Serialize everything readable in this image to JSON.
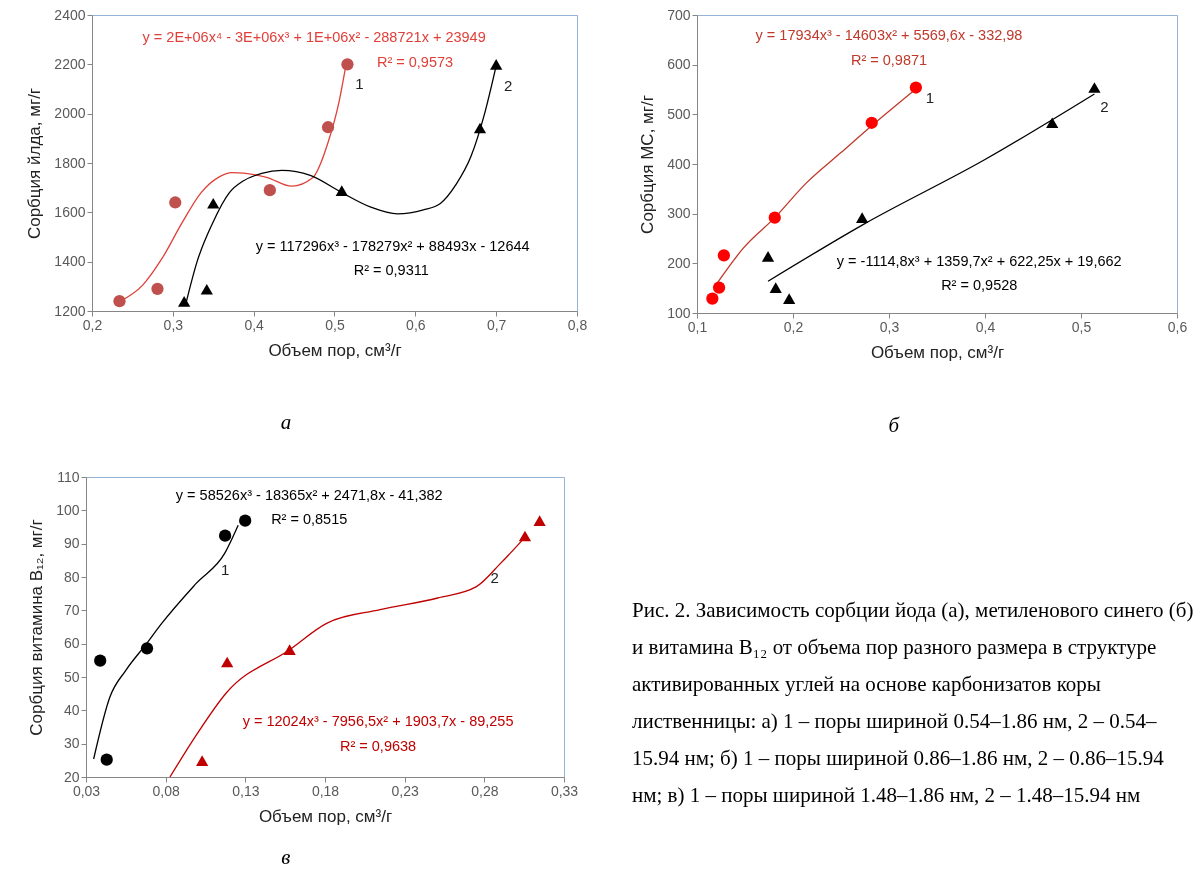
{
  "chart_data": [
    {
      "type": "scatter",
      "xlabel": "Объем пор, см³/г",
      "ylabel": "Сорбция йлда, мг/г",
      "xlim": [
        0.2,
        0.8
      ],
      "ylim": [
        1200,
        2400
      ],
      "xticks": [
        {
          "value": 0.2,
          "label": "0,2"
        },
        {
          "value": 0.3,
          "label": "0,3"
        },
        {
          "value": 0.4,
          "label": "0,4"
        },
        {
          "value": 0.5,
          "label": "0,5"
        },
        {
          "value": 0.6,
          "label": "0,6"
        },
        {
          "value": 0.7,
          "label": "0,7"
        },
        {
          "value": 0.8,
          "label": "0,8"
        }
      ],
      "yticks": [
        1200,
        1400,
        1600,
        1800,
        2000,
        2200,
        2400
      ],
      "series": [
        {
          "name": "1",
          "type": "scatter",
          "marker": "circle",
          "color": "#c0504d",
          "x": [
            0.234,
            0.281,
            0.303,
            0.42,
            0.492,
            0.516
          ],
          "values": [
            1240,
            1290,
            1640,
            1690,
            1945,
            2200
          ]
        },
        {
          "type": "line",
          "color": "#e0403a",
          "x": [
            0.233,
            0.263,
            0.287,
            0.311,
            0.335,
            0.358,
            0.373,
            0.416,
            0.447,
            0.473,
            0.492,
            0.506,
            0.514
          ],
          "values": [
            1236,
            1306,
            1415,
            1555,
            1680,
            1745,
            1761,
            1742,
            1706,
            1740,
            1883,
            2054,
            2194
          ]
        },
        {
          "name": "2",
          "type": "scatter",
          "marker": "triangle",
          "color": "#000000",
          "x": [
            0.314,
            0.342,
            0.35,
            0.509,
            0.68,
            0.7
          ],
          "values": [
            1239,
            1288,
            1637,
            1688,
            1942,
            2200
          ]
        },
        {
          "type": "line",
          "color": "#000000",
          "x": [
            0.316,
            0.33,
            0.349,
            0.37,
            0.387,
            0.41,
            0.435,
            0.47,
            0.509,
            0.545,
            0.578,
            0.61,
            0.631,
            0.65,
            0.669,
            0.685,
            0.7
          ],
          "values": [
            1228,
            1400,
            1555,
            1680,
            1727,
            1758,
            1770,
            1750,
            1680,
            1621,
            1594,
            1610,
            1636,
            1711,
            1828,
            1992,
            2194
          ]
        }
      ],
      "annotations": [
        "y = 2E+06x⁴ - 3E+06x³ + 1E+06x² - 288721x + 23949",
        "R² = 0,9573",
        "y = 117296x³ - 178279x² + 88493x - 12644",
        "R² = 0,9311",
        "а"
      ]
    },
    {
      "type": "scatter",
      "xlabel": "Объем пор, см³/г",
      "ylabel": "Сорбция МС, мг/г",
      "xlim": [
        0.1,
        0.6
      ],
      "ylim": [
        100,
        700
      ],
      "xticks": [
        {
          "value": 0.1,
          "label": "0,1"
        },
        {
          "value": 0.2,
          "label": "0,2"
        },
        {
          "value": 0.3,
          "label": "0,3"
        },
        {
          "value": 0.4,
          "label": "0,4"
        },
        {
          "value": 0.5,
          "label": "0,5"
        },
        {
          "value": 0.6,
          "label": "0,6"
        }
      ],
      "yticks": [
        100,
        200,
        300,
        400,
        500,
        600,
        700
      ],
      "series": [
        {
          "name": "1",
          "type": "scatter",
          "marker": "circle",
          "color": "#ff0000",
          "x": [
            0.116,
            0.123,
            0.128,
            0.181,
            0.282,
            0.328
          ],
          "values": [
            129,
            151,
            216,
            292,
            483,
            554
          ]
        },
        {
          "type": "line",
          "color": "#c0392b",
          "x": [
            0.121,
            0.148,
            0.181,
            0.214,
            0.25,
            0.282,
            0.328
          ],
          "values": [
            160,
            230,
            292,
            362,
            423,
            477,
            551
          ]
        },
        {
          "name": "2",
          "type": "scatter",
          "marker": "triangle",
          "color": "#000000",
          "x": [
            0.174,
            0.182,
            0.196,
            0.272,
            0.47,
            0.514
          ],
          "values": [
            214,
            151,
            129,
            292,
            483,
            554
          ]
        },
        {
          "type": "line",
          "color": "#000000",
          "x": [
            0.174,
            0.273,
            0.4,
            0.514
          ],
          "values": [
            164,
            278,
            409,
            541
          ]
        }
      ],
      "annotations": [
        "y = 17934x³ - 14603x² + 5569,6x - 332,98",
        "R² = 0,9871",
        "y = -1114,8x³ + 1359,7x² + 622,25x + 19,662",
        "R² = 0,9528",
        "б"
      ]
    },
    {
      "type": "scatter",
      "xlabel": "Объем пор, см³/г",
      "ylabel": "Сорбция витамина B₁₂, мг/г",
      "xlim": [
        0.03,
        0.33
      ],
      "ylim": [
        20,
        110
      ],
      "xticks": [
        {
          "value": 0.03,
          "label": "0,03"
        },
        {
          "value": 0.08,
          "label": "0,08"
        },
        {
          "value": 0.13,
          "label": "0,13"
        },
        {
          "value": 0.18,
          "label": "0,18"
        },
        {
          "value": 0.23,
          "label": "0,23"
        },
        {
          "value": 0.28,
          "label": "0,28"
        },
        {
          "value": 0.33,
          "label": "0,33"
        }
      ],
      "yticks": [
        20,
        30,
        40,
        50,
        60,
        70,
        80,
        90,
        100,
        110
      ],
      "series": [
        {
          "name": "1",
          "type": "scatter",
          "marker": "circle",
          "color": "#000000",
          "x": [
            0.0389,
            0.043,
            0.0683,
            0.1173,
            0.1299
          ],
          "values": [
            54.9,
            25.2,
            58.6,
            92.4,
            96.9
          ]
        },
        {
          "type": "line",
          "color": "#000000",
          "x": [
            0.0348,
            0.045,
            0.055,
            0.068,
            0.0774,
            0.099,
            0.1173,
            0.1255
          ],
          "values": [
            25.4,
            44,
            52,
            60,
            66,
            78,
            87.3,
            95.5
          ]
        },
        {
          "name": "2",
          "type": "scatter",
          "marker": "triangle",
          "color": "#c00000",
          "x": [
            0.1029,
            0.1186,
            0.1578,
            0.3055,
            0.3147
          ],
          "values": [
            24.9,
            54.5,
            58.2,
            92.3,
            96.9
          ]
        },
        {
          "type": "line",
          "color": "#c00000",
          "x": [
            0.0827,
            0.099,
            0.118,
            0.1578,
            0.181,
            0.2146,
            0.2507,
            0.275,
            0.29,
            0.306
          ],
          "values": [
            20,
            32.4,
            45.2,
            58.2,
            66.1,
            70.2,
            73.7,
            77.1,
            84,
            92.2
          ]
        }
      ],
      "annotations": [
        "y = 58526x³ - 18365x² + 2471,8x - 41,382",
        "R² = 0,8515",
        "y = 12024x³ - 7956,5x² + 1903,7x - 89,255",
        "R² = 0,9638",
        "в"
      ]
    },
    {
      "type": "other",
      "annotations": [
        "Рис. 2. Зависимость сорбции йода (а), метиленового синего (б) и витамина B₁₂ от объема пор разного размера в структуре активированных углей на основе карбонизатов коры лиственницы: а) 1 – поры шириной 0.54–1.86 нм, 2 – 0.54–15.94 нм; б) 1 – поры шириной 0.86–1.86 нм, 2 – 0.86–15.94 нм; в) 1 – поры шириной 1.48–1.86 нм, 2 – 1.48–15.94 нм"
      ]
    }
  ]
}
